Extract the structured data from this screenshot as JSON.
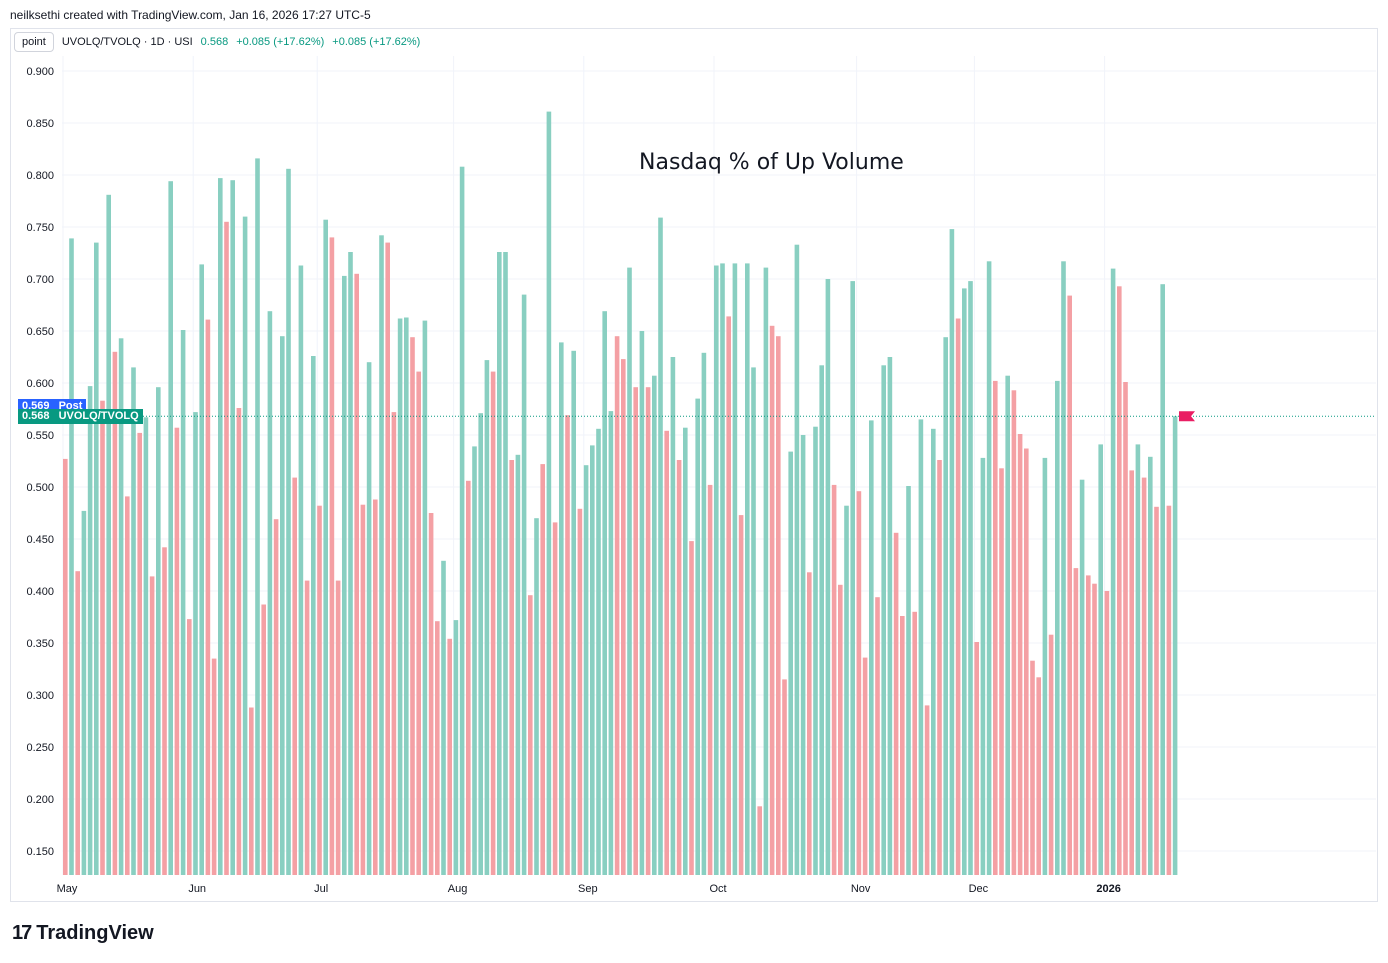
{
  "header": {
    "credit": "neilksethi created with TradingView.com, Jan 16, 2026 17:27 UTC-5"
  },
  "legend": {
    "point_label": "point",
    "symbol": "UVOLQ/TVOLQ · 1D · USI",
    "last": "0.568",
    "change1": "+0.085 (+17.62%)",
    "change2": "+0.085 (+17.62%)"
  },
  "labels": {
    "post_value": "0.569",
    "post_text": "Post",
    "last_value": "0.568",
    "last_text": "UVOLQ/TVOLQ"
  },
  "footer": {
    "brand": "TradingView",
    "mark": "17"
  },
  "colors": {
    "up": "#89cfc1",
    "down": "#f4a0a4",
    "grid": "#f0f3fa",
    "post": "#2962ff",
    "last": "#089981",
    "flag": "#e91e63"
  },
  "chart_data": {
    "type": "bar",
    "title": "Nasdaq % of Up Volume",
    "xlabel": "",
    "ylabel": "",
    "ylim": [
      0.125,
      0.9
    ],
    "y_ticks": [
      "0.900",
      "0.850",
      "0.800",
      "0.750",
      "0.700",
      "0.650",
      "0.600",
      "0.550",
      "0.500",
      "0.450",
      "0.400",
      "0.350",
      "0.300",
      "0.250",
      "0.200",
      "0.150"
    ],
    "x_ticks": [
      {
        "label": "May",
        "index": 0
      },
      {
        "label": "Jun",
        "index": 21
      },
      {
        "label": "Jul",
        "index": 41
      },
      {
        "label": "Aug",
        "index": 63
      },
      {
        "label": "Sep",
        "index": 84
      },
      {
        "label": "Oct",
        "index": 105
      },
      {
        "label": "Nov",
        "index": 128
      },
      {
        "label": "Dec",
        "index": 147
      },
      {
        "label": "2026",
        "index": 168
      }
    ],
    "last_value": 0.568,
    "post_value": 0.569,
    "values": [
      0.527,
      0.739,
      0.419,
      0.477,
      0.597,
      0.735,
      0.583,
      0.781,
      0.63,
      0.643,
      0.491,
      0.615,
      0.552,
      0.567,
      0.414,
      0.596,
      0.442,
      0.794,
      0.557,
      0.651,
      0.373,
      0.572,
      0.714,
      0.661,
      0.335,
      0.797,
      0.755,
      0.795,
      0.576,
      0.76,
      0.288,
      0.816,
      0.387,
      0.669,
      0.469,
      0.645,
      0.806,
      0.509,
      0.713,
      0.41,
      0.626,
      0.482,
      0.757,
      0.74,
      0.41,
      0.703,
      0.726,
      0.705,
      0.483,
      0.62,
      0.488,
      0.742,
      0.735,
      0.572,
      0.662,
      0.663,
      0.644,
      0.611,
      0.66,
      0.475,
      0.371,
      0.429,
      0.354,
      0.372,
      0.808,
      0.506,
      0.539,
      0.571,
      0.622,
      0.611,
      0.726,
      0.726,
      0.526,
      0.531,
      0.685,
      0.396,
      0.47,
      0.522,
      0.861,
      0.466,
      0.639,
      0.569,
      0.631,
      0.479,
      0.521,
      0.54,
      0.556,
      0.669,
      0.573,
      0.645,
      0.623,
      0.711,
      0.596,
      0.65,
      0.596,
      0.607,
      0.759,
      0.554,
      0.625,
      0.526,
      0.557,
      0.448,
      0.585,
      0.629,
      0.502,
      0.713,
      0.715,
      0.664,
      0.715,
      0.473,
      0.715,
      0.615,
      0.193,
      0.711,
      0.655,
      0.645,
      0.315,
      0.534,
      0.733,
      0.55,
      0.418,
      0.558,
      0.617,
      0.7,
      0.502,
      0.406,
      0.482,
      0.698,
      0.496,
      0.336,
      0.564,
      0.394,
      0.617,
      0.625,
      0.456,
      0.376,
      0.501,
      0.38,
      0.565,
      0.29,
      0.556,
      0.526,
      0.644,
      0.748,
      0.662,
      0.691,
      0.698,
      0.351,
      0.528,
      0.717,
      0.602,
      0.518,
      0.607,
      0.593,
      0.551,
      0.537,
      0.333,
      0.317,
      0.528,
      0.358,
      0.602,
      0.717,
      0.684,
      0.422,
      0.507,
      0.415,
      0.407,
      0.541,
      0.4,
      0.71,
      0.693,
      0.601,
      0.516,
      0.541,
      0.509,
      0.529,
      0.481,
      0.695,
      0.482,
      0.568
    ],
    "colors_by_bar": [
      "d",
      "u",
      "d",
      "u",
      "u",
      "u",
      "d",
      "u",
      "d",
      "u",
      "d",
      "u",
      "d",
      "u",
      "d",
      "u",
      "d",
      "u",
      "d",
      "u",
      "d",
      "u",
      "u",
      "d",
      "d",
      "u",
      "d",
      "u",
      "d",
      "u",
      "d",
      "u",
      "d",
      "u",
      "d",
      "u",
      "u",
      "d",
      "u",
      "d",
      "u",
      "d",
      "u",
      "d",
      "d",
      "u",
      "u",
      "d",
      "d",
      "u",
      "d",
      "u",
      "d",
      "d",
      "u",
      "u",
      "d",
      "d",
      "u",
      "d",
      "d",
      "u",
      "d",
      "u",
      "u",
      "d",
      "u",
      "u",
      "u",
      "d",
      "u",
      "u",
      "d",
      "u",
      "u",
      "d",
      "u",
      "d",
      "u",
      "d",
      "u",
      "d",
      "u",
      "d",
      "u",
      "u",
      "u",
      "u",
      "u",
      "d",
      "d",
      "u",
      "d",
      "u",
      "d",
      "u",
      "u",
      "d",
      "u",
      "d",
      "u",
      "d",
      "u",
      "u",
      "d",
      "u",
      "u",
      "d",
      "u",
      "d",
      "u",
      "u",
      "d",
      "u",
      "d",
      "d",
      "d",
      "u",
      "u",
      "u",
      "d",
      "u",
      "u",
      "u",
      "d",
      "d",
      "u",
      "u",
      "d",
      "d",
      "u",
      "d",
      "u",
      "u",
      "d",
      "d",
      "u",
      "d",
      "u",
      "d",
      "u",
      "d",
      "u",
      "u",
      "d",
      "u",
      "u",
      "d",
      "u",
      "u",
      "d",
      "d",
      "u",
      "d",
      "d",
      "d",
      "d",
      "d",
      "u",
      "d",
      "u",
      "u",
      "d",
      "d",
      "u",
      "d",
      "d",
      "u",
      "d",
      "u",
      "d",
      "d",
      "d",
      "u",
      "d",
      "u",
      "d",
      "u",
      "d",
      "u"
    ]
  }
}
